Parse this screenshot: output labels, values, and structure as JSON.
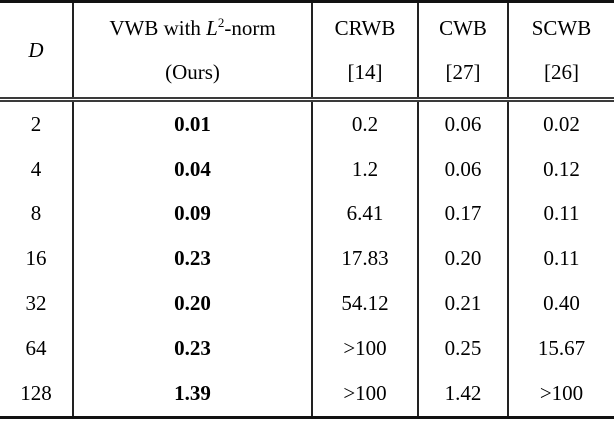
{
  "table": {
    "header": {
      "d": {
        "symbol": "D"
      },
      "vwb": {
        "pre": "VWB with ",
        "math_var": "L",
        "sup": "2",
        "post": "-norm",
        "subtitle": "(Ours)"
      },
      "crwb": {
        "title": "CRWB",
        "ref": "[14]"
      },
      "cwb": {
        "title": "CWB",
        "ref": "[27]"
      },
      "scwb": {
        "title": "SCWB",
        "ref": "[26]"
      }
    },
    "rows": [
      {
        "d": "2",
        "vwb": "0.01",
        "crwb": "0.2",
        "cwb": "0.06",
        "scwb": "0.02"
      },
      {
        "d": "4",
        "vwb": "0.04",
        "crwb": "1.2",
        "cwb": "0.06",
        "scwb": "0.12"
      },
      {
        "d": "8",
        "vwb": "0.09",
        "crwb": "6.41",
        "cwb": "0.17",
        "scwb": "0.11"
      },
      {
        "d": "16",
        "vwb": "0.23",
        "crwb": "17.83",
        "cwb": "0.20",
        "scwb": "0.11"
      },
      {
        "d": "32",
        "vwb": "0.20",
        "crwb": "54.12",
        "cwb": "0.21",
        "scwb": "0.40"
      },
      {
        "d": "64",
        "vwb": "0.23",
        "crwb": ">100",
        "cwb": "0.25",
        "scwb": "15.67"
      },
      {
        "d": "128",
        "vwb": "1.39",
        "crwb": ">100",
        "cwb": "1.42",
        "scwb": ">100"
      }
    ],
    "chart_data": {
      "type": "table",
      "columns": [
        "D",
        "VWB with L^2-norm (Ours)",
        "CRWB [14]",
        "CWB [27]",
        "SCWB [26]"
      ],
      "rows": [
        [
          "2",
          "0.01",
          "0.2",
          "0.06",
          "0.02"
        ],
        [
          "4",
          "0.04",
          "1.2",
          "0.06",
          "0.12"
        ],
        [
          "8",
          "0.09",
          "6.41",
          "0.17",
          "0.11"
        ],
        [
          "16",
          "0.23",
          "17.83",
          "0.20",
          "0.11"
        ],
        [
          "32",
          "0.20",
          "54.12",
          "0.21",
          "0.40"
        ],
        [
          "64",
          "0.23",
          ">100",
          "0.25",
          "15.67"
        ],
        [
          "128",
          "1.39",
          ">100",
          "1.42",
          ">100"
        ]
      ]
    },
    "colors": {
      "text": "#000000",
      "rule": "#111111",
      "background": "#ffffff"
    }
  }
}
